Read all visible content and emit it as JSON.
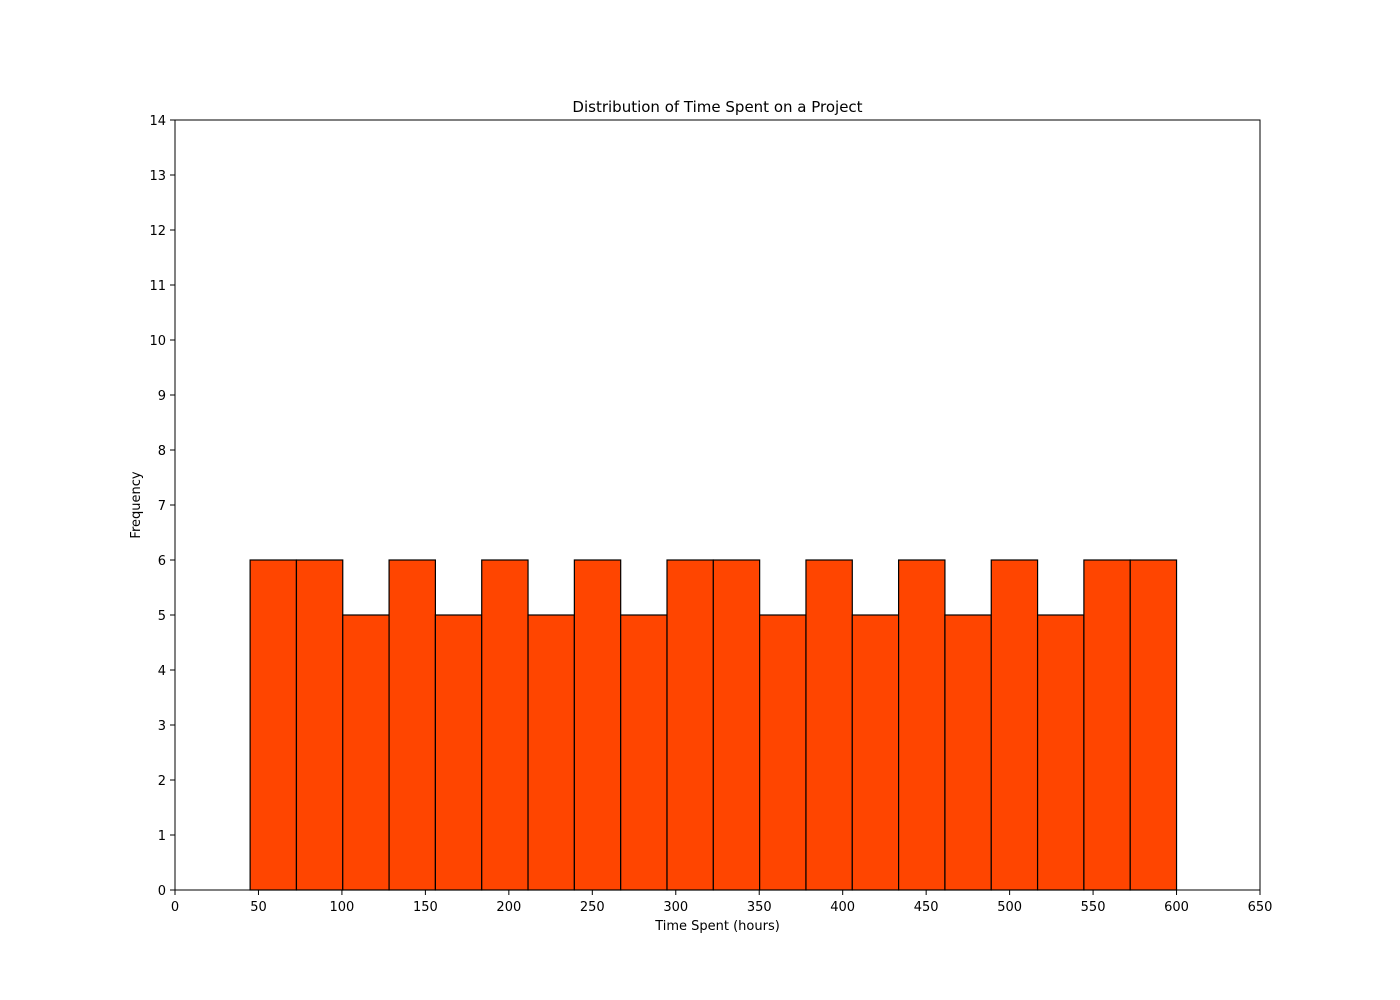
{
  "chart_data": {
    "type": "bar",
    "subtype": "histogram",
    "title": "Distribution of Time Spent on a Project",
    "xlabel": "Time Spent (hours)",
    "ylabel": "Frequency",
    "xlim": [
      0,
      650
    ],
    "ylim": [
      0,
      14
    ],
    "xticks": [
      0,
      50,
      100,
      150,
      200,
      250,
      300,
      350,
      400,
      450,
      500,
      550,
      600,
      650
    ],
    "yticks": [
      0,
      1,
      2,
      3,
      4,
      5,
      6,
      7,
      8,
      9,
      10,
      11,
      12,
      13,
      14
    ],
    "bin_start": 45,
    "bin_end": 600,
    "values": [
      6,
      6,
      5,
      6,
      5,
      6,
      5,
      6,
      5,
      6,
      6,
      5,
      6,
      5,
      6,
      5,
      6,
      5,
      6,
      6
    ],
    "bar_color": "#ff4500",
    "edge_color": "#000000",
    "grid": false,
    "legend": "none"
  }
}
